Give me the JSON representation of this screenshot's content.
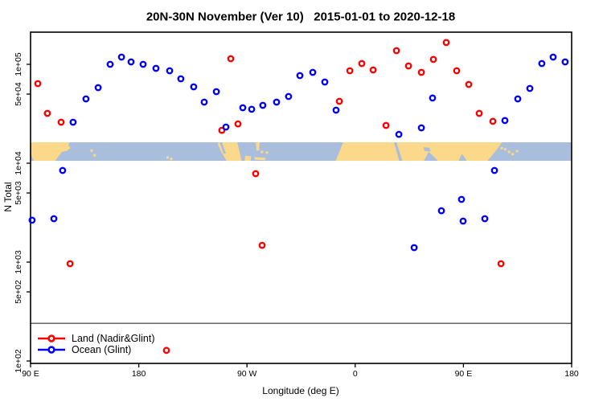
{
  "chart_data": {
    "type": "scatter",
    "title": "20N-30N November (Ver 10)   2015-01-01 to 2020-12-18",
    "xlabel": "Longitude (deg E)",
    "ylabel": "N Total",
    "x_axis": {
      "domain_deg_east": [
        90,
        540
      ],
      "tick_lons": [
        90,
        180,
        270,
        360,
        450,
        540
      ],
      "tick_labels": [
        "90 E",
        "180",
        "90 W",
        "0",
        "90 E",
        "180"
      ],
      "grid": false
    },
    "y_axis": {
      "scale": "log",
      "range": [
        94,
        210000
      ],
      "tick_values": [
        100000,
        50000,
        10000,
        5000,
        1000,
        500,
        100
      ],
      "tick_labels": [
        "1e+05",
        "5e+04",
        "1e+04",
        "5e+03",
        "1e+03",
        "5e+02",
        "1e+02"
      ]
    },
    "reference_line": {
      "n": 240,
      "color": "#555555"
    },
    "legend_position": "bottom-left",
    "series": [
      {
        "name": "Land (Nadir&Glint)",
        "color": "#ff0000",
        "points": [
          [
            96.0,
            63800
          ],
          [
            104.0,
            31900
          ],
          [
            115.4,
            26000
          ],
          [
            122.8,
            964
          ],
          [
            203.0,
            128
          ],
          [
            249.1,
            21500
          ],
          [
            256.5,
            114000
          ],
          [
            262.5,
            25000
          ],
          [
            277.2,
            7840
          ],
          [
            282.6,
            1480
          ],
          [
            346.8,
            42300
          ],
          [
            355.5,
            86100
          ],
          [
            365.5,
            101900
          ],
          [
            374.9,
            87700
          ],
          [
            385.6,
            24100
          ],
          [
            394.3,
            137400
          ],
          [
            404.3,
            96400
          ],
          [
            415.0,
            83000
          ],
          [
            425.0,
            112000
          ],
          [
            435.7,
            166000
          ],
          [
            444.4,
            86100
          ],
          [
            454.4,
            62600
          ],
          [
            463.1,
            31900
          ],
          [
            474.5,
            26500
          ],
          [
            481.2,
            964
          ]
        ]
      },
      {
        "name": "Ocean (Glint)",
        "color": "#0000ff",
        "points": [
          [
            91.3,
            2650
          ],
          [
            109.4,
            2750
          ],
          [
            116.7,
            8450
          ],
          [
            125.4,
            26000
          ],
          [
            136.1,
            44700
          ],
          [
            146.2,
            58100
          ],
          [
            156.2,
            100000
          ],
          [
            165.6,
            118300
          ],
          [
            173.6,
            105700
          ],
          [
            183.6,
            100000
          ],
          [
            194.3,
            91000
          ],
          [
            205.7,
            86100
          ],
          [
            215.0,
            71400
          ],
          [
            225.7,
            59200
          ],
          [
            234.4,
            41500
          ],
          [
            244.5,
            52900
          ],
          [
            252.5,
            23200
          ],
          [
            266.5,
            36400
          ],
          [
            273.9,
            35100
          ],
          [
            283.2,
            38500
          ],
          [
            294.6,
            41500
          ],
          [
            304.6,
            47300
          ],
          [
            314.0,
            76900
          ],
          [
            324.7,
            83000
          ],
          [
            334.7,
            66200
          ],
          [
            344.1,
            34400
          ],
          [
            396.3,
            19600
          ],
          [
            409.0,
            1400
          ],
          [
            415.0,
            22800
          ],
          [
            424.3,
            45600
          ],
          [
            431.7,
            3310
          ],
          [
            448.4,
            4310
          ],
          [
            449.7,
            2600
          ],
          [
            467.8,
            2750
          ],
          [
            475.8,
            8450
          ],
          [
            484.5,
            27000
          ],
          [
            495.2,
            44700
          ],
          [
            505.2,
            57000
          ],
          [
            515.2,
            101900
          ],
          [
            524.6,
            118300
          ],
          [
            534.6,
            105700
          ]
        ]
      }
    ],
    "map_strip": {
      "description": "world coastline band 20N-30N drawn across plot",
      "n_band": [
        10600,
        16300
      ],
      "ocean_color": "#a9bedc",
      "land_color": "#fbd88a",
      "land_polygons": [
        [
          [
            90,
            0
          ],
          [
            122,
            0
          ],
          [
            121,
            0.45
          ],
          [
            116,
            0.52
          ],
          [
            110.5,
            1
          ],
          [
            90,
            1
          ]
        ],
        [
          [
            246,
            0
          ],
          [
            262,
            0
          ],
          [
            264.5,
            0.72
          ],
          [
            265.5,
            1
          ],
          [
            253,
            1
          ],
          [
            248.5,
            0.5
          ],
          [
            246,
            0.15
          ]
        ],
        [
          [
            268.5,
            0.72
          ],
          [
            273.5,
            0.75
          ],
          [
            273,
            1
          ],
          [
            268,
            1
          ]
        ],
        [
          [
            277.5,
            0
          ],
          [
            280.5,
            0
          ],
          [
            280,
            0.45
          ],
          [
            277.8,
            0.45
          ]
        ],
        [
          [
            276,
            0.8
          ],
          [
            285.5,
            0.84
          ],
          [
            285.2,
            0.97
          ],
          [
            276.5,
            0.94
          ]
        ],
        [
          [
            350,
            0
          ],
          [
            482,
            0
          ],
          [
            476.5,
            0.5
          ],
          [
            470,
            1
          ],
          [
            343.8,
            1
          ]
        ]
      ],
      "water_overlays": [
        [
          [
            247.2,
            0
          ],
          [
            249.2,
            0
          ],
          [
            252.5,
            0.6
          ],
          [
            250.5,
            0.62
          ]
        ],
        [
          [
            392.2,
            0
          ],
          [
            394.4,
            0
          ],
          [
            399.2,
            1
          ],
          [
            396.6,
            1
          ]
        ],
        [
          [
            416.8,
            0.26
          ],
          [
            421.8,
            0.3
          ],
          [
            422.6,
            0.5
          ],
          [
            417.6,
            0.46
          ]
        ],
        [
          [
            417.2,
            1
          ],
          [
            421,
            0.52
          ],
          [
            424.2,
            0.7
          ],
          [
            428.8,
            1
          ]
        ],
        [
          [
            446,
            1
          ],
          [
            448.8,
            0.62
          ],
          [
            452.8,
            1
          ]
        ],
        [
          [
            90,
            0.62
          ],
          [
            92.8,
            1
          ],
          [
            90,
            1
          ]
        ]
      ],
      "islands": [
        [
          140.8,
          0.45
        ],
        [
          143.2,
          0.7
        ],
        [
          121.8,
          0.3
        ],
        [
          204,
          0.82
        ],
        [
          207,
          0.9
        ],
        [
          481.8,
          0.32
        ],
        [
          484.8,
          0.38
        ],
        [
          488,
          0.52
        ],
        [
          491,
          0.64
        ],
        [
          494.5,
          0.48
        ],
        [
          286.5,
          0.55
        ],
        [
          282.5,
          0.52
        ]
      ]
    }
  }
}
